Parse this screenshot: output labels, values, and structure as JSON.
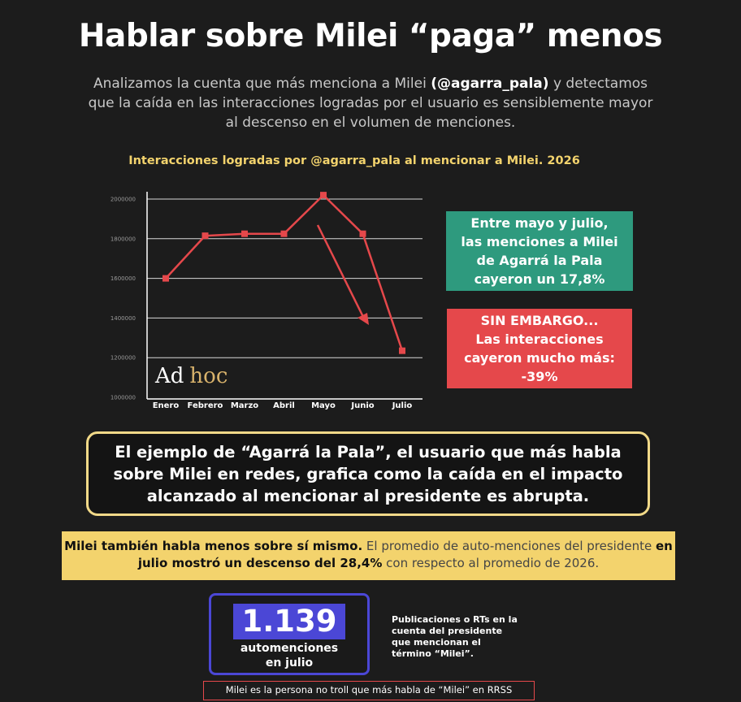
{
  "header": {
    "title": "Hablar sobre Milei “paga” menos",
    "subtitle_pre": "Analizamos la cuenta que más menciona a Milei ",
    "subtitle_handle": "(@agarra_pala)",
    "subtitle_post": " y detectamos que la caída en las interacciones logradas por el usuario es sensiblemente mayor al descenso en el volumen de menciones."
  },
  "chart_data": {
    "type": "line",
    "title": "Interacciones logradas por @agarra_pala al mencionar a Milei. 2026",
    "categories": [
      "Enero",
      "Febrero",
      "Marzo",
      "Abril",
      "Mayo",
      "Junio",
      "Julio"
    ],
    "values": [
      1600000,
      1815000,
      1825000,
      1825000,
      2020000,
      1825000,
      1235000
    ],
    "ylim": [
      1000000,
      2000000
    ],
    "yticks": [
      "1000000",
      "1200000",
      "1400000",
      "1600000",
      "1800000",
      "2000000"
    ],
    "grid": true,
    "line_color": "#e5484b",
    "annotation": "downward arrow from Mayo toward Junio"
  },
  "logo": {
    "ad": "Ad",
    "hoc": "hoc"
  },
  "boxes": {
    "green": "Entre mayo y julio,\nlas menciones a Milei\nde Agarrá la Pala\ncayeron un 17,8%",
    "red": "SIN EMBARGO...\nLas interacciones\ncayeron mucho más:\n-39%"
  },
  "callout": "El ejemplo de “Agarrá la Pala”, el usuario que más habla sobre Milei en redes, grafica como la caída en el impacto alcanzado al mencionar al presidente es abrupta.",
  "band": {
    "bold1": "Milei también habla menos sobre sí mismo.",
    "text1": " El promedio de auto-menciones del presidente ",
    "bold2": "en julio mostró un descenso del 28,4%",
    "text2": " con respecto al promedio de 2026."
  },
  "stat": {
    "number": "1.139",
    "label": "automenciones\nen julio",
    "note": "Publicaciones o RTs en la\ncuenta del presidente\nque mencionan el\ntérmino “Milei”."
  },
  "footer_note": "Milei es la persona no troll que más habla de “Milei” en RRSS",
  "colors": {
    "background": "#1c1c1c",
    "yellow": "#f3d36d",
    "green": "#2e9a7e",
    "red": "#e5484b",
    "blue": "#4b47d6"
  }
}
